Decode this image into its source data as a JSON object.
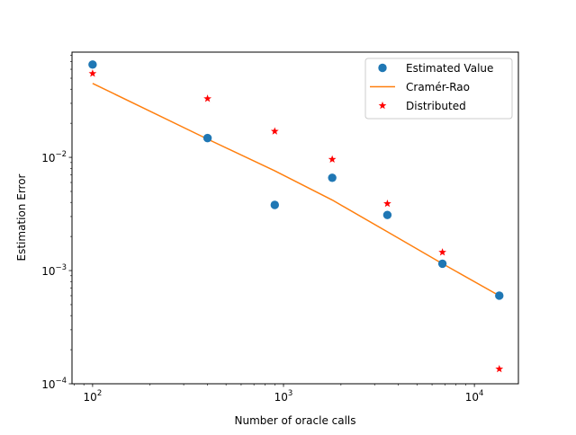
{
  "chart_data": {
    "type": "scatter",
    "title": "",
    "xlabel": "Number of oracle calls",
    "ylabel": "Estimation Error",
    "xscale": "log",
    "yscale": "log",
    "xlim": [
      78,
      17000
    ],
    "ylim": [
      0.0001,
      0.085
    ],
    "x_ticks": [
      {
        "base": "10",
        "exp": "2",
        "value": 100
      },
      {
        "base": "10",
        "exp": "3",
        "value": 1000
      },
      {
        "base": "10",
        "exp": "4",
        "value": 10000
      }
    ],
    "y_ticks": [
      {
        "base": "10",
        "exp": "−4",
        "value": 0.0001
      },
      {
        "base": "10",
        "exp": "−3",
        "value": 0.001
      },
      {
        "base": "10",
        "exp": "−2",
        "value": 0.01
      }
    ],
    "legend_position": "top-right",
    "series": [
      {
        "name": "Estimated Value",
        "kind": "markers-circle",
        "color": "#1f77b4",
        "x": [
          100,
          400,
          900,
          1800,
          3500,
          6800,
          13500
        ],
        "y": [
          0.066,
          0.0148,
          0.0038,
          0.0066,
          0.0031,
          0.00115,
          0.0006
        ]
      },
      {
        "name": "Cramér-Rao",
        "kind": "line",
        "color": "#ff7f0e",
        "x": [
          100,
          400,
          900,
          1800,
          3500,
          6800,
          13500
        ],
        "y": [
          0.045,
          0.0145,
          0.0076,
          0.0042,
          0.0022,
          0.00115,
          0.0006
        ]
      },
      {
        "name": "Distributed",
        "kind": "markers-star",
        "color": "#ff0000",
        "x": [
          100,
          400,
          900,
          1800,
          3500,
          6800,
          13500
        ],
        "y": [
          0.055,
          0.033,
          0.017,
          0.0096,
          0.0039,
          0.00145,
          0.000135
        ]
      }
    ]
  }
}
